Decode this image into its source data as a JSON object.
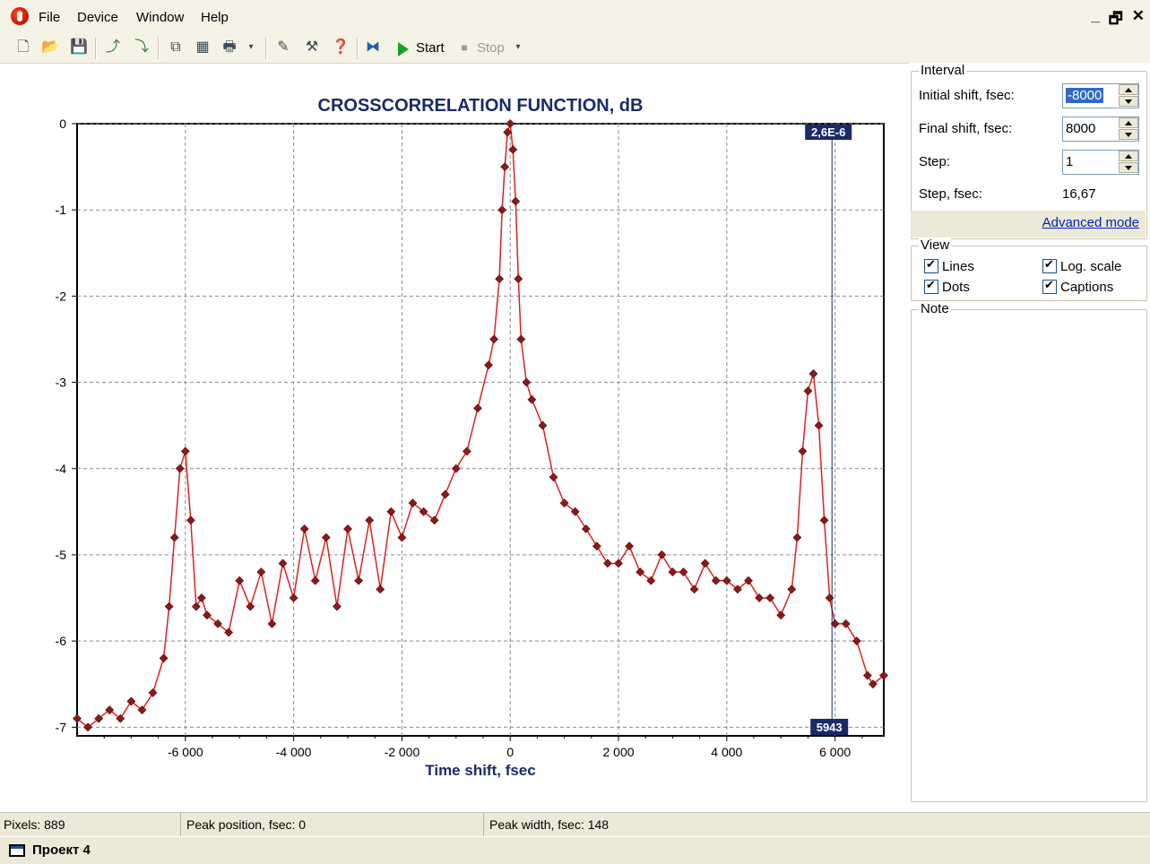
{
  "menu": {
    "items": [
      "File",
      "Device",
      "Window",
      "Help"
    ],
    "window_controls": [
      "_",
      "🗗",
      "✕"
    ]
  },
  "toolbar": {
    "start_label": "Start",
    "stop_label": "Stop"
  },
  "chart_data": {
    "type": "line",
    "title": "CROSSCORRELATION FUNCTION, dB",
    "xlabel": "Time shift, fsec",
    "ylabel": "",
    "xlim": [
      -8000,
      6900
    ],
    "ylim": [
      -7.1,
      0
    ],
    "xticks": [
      -6000,
      -4000,
      -2000,
      0,
      2000,
      4000,
      6000
    ],
    "xtick_labels": [
      "-6 000",
      "-4 000",
      "-2 000",
      "0",
      "2 000",
      "4 000",
      "6 000"
    ],
    "yticks": [
      0,
      -1,
      -2,
      -3,
      -4,
      -5,
      -6,
      -7
    ],
    "ytick_labels": [
      "0",
      "-1",
      "-2",
      "-3",
      "-4",
      "-5",
      "-6",
      "-7"
    ],
    "grid": true,
    "line_color": "#e02020",
    "marker_color": "#8b1a1a",
    "cursor": {
      "x": 5943,
      "x_label": "5943",
      "y_label": "2,6E-6"
    },
    "series": [
      {
        "x": [
          -8000,
          -7800,
          -7600,
          -7400,
          -7200,
          -7000,
          -6800,
          -6600,
          -6400,
          -6300,
          -6200,
          -6100,
          -6000,
          -5900,
          -5800,
          -5700,
          -5600,
          -5400,
          -5200,
          -5000,
          -4800,
          -4600,
          -4400,
          -4200,
          -4000,
          -3800,
          -3600,
          -3400,
          -3200,
          -3000,
          -2800,
          -2600,
          -2400,
          -2200,
          -2000,
          -1800,
          -1600,
          -1400,
          -1200,
          -1000,
          -800,
          -600,
          -400,
          -300,
          -200,
          -150,
          -100,
          -50,
          0,
          50,
          100,
          150,
          200,
          300,
          400,
          600,
          800,
          1000,
          1200,
          1400,
          1600,
          1800,
          2000,
          2200,
          2400,
          2600,
          2800,
          3000,
          3200,
          3400,
          3600,
          3800,
          4000,
          4200,
          4400,
          4600,
          4800,
          5000,
          5200,
          5300,
          5400,
          5500,
          5600,
          5700,
          5800,
          5900,
          6000,
          6200,
          6400,
          6600,
          6700,
          6900
        ],
        "y": [
          -6.9,
          -7.0,
          -6.9,
          -6.8,
          -6.9,
          -6.7,
          -6.8,
          -6.6,
          -6.2,
          -5.6,
          -4.8,
          -4.0,
          -3.8,
          -4.6,
          -5.6,
          -5.5,
          -5.7,
          -5.8,
          -5.9,
          -5.3,
          -5.6,
          -5.2,
          -5.8,
          -5.1,
          -5.5,
          -4.7,
          -5.3,
          -4.8,
          -5.6,
          -4.7,
          -5.3,
          -4.6,
          -5.4,
          -4.5,
          -4.8,
          -4.4,
          -4.5,
          -4.6,
          -4.3,
          -4.0,
          -3.8,
          -3.3,
          -2.8,
          -2.5,
          -1.8,
          -1.0,
          -0.5,
          -0.1,
          0.0,
          -0.3,
          -0.9,
          -1.8,
          -2.5,
          -3.0,
          -3.2,
          -3.5,
          -4.1,
          -4.4,
          -4.5,
          -4.7,
          -4.9,
          -5.1,
          -5.1,
          -4.9,
          -5.2,
          -5.3,
          -5.0,
          -5.2,
          -5.2,
          -5.4,
          -5.1,
          -5.3,
          -5.3,
          -5.4,
          -5.3,
          -5.5,
          -5.5,
          -5.7,
          -5.4,
          -4.8,
          -3.8,
          -3.1,
          -2.9,
          -3.5,
          -4.6,
          -5.5,
          -5.8,
          -5.8,
          -6.0,
          -6.4,
          -6.5,
          -6.4
        ]
      }
    ]
  },
  "interval": {
    "title": "Interval",
    "initial_shift_label": "Initial shift, fsec:",
    "initial_shift_value": "-8000",
    "final_shift_label": "Final shift, fsec:",
    "final_shift_value": "8000",
    "step_label": "Step:",
    "step_value": "1",
    "step_fsec_label": "Step, fsec:",
    "step_fsec_value": "16,67",
    "advanced_label": "Advanced mode"
  },
  "view": {
    "title": "View",
    "lines_label": "Lines",
    "dots_label": "Dots",
    "log_scale_label": "Log. scale",
    "captions_label": "Captions"
  },
  "note": {
    "title": "Note"
  },
  "status": {
    "pixels": "Pixels: 889",
    "peak_position": "Peak position, fsec: 0",
    "peak_width": "Peak width, fsec: 148"
  },
  "taskbar": {
    "item": "Проект 4"
  }
}
